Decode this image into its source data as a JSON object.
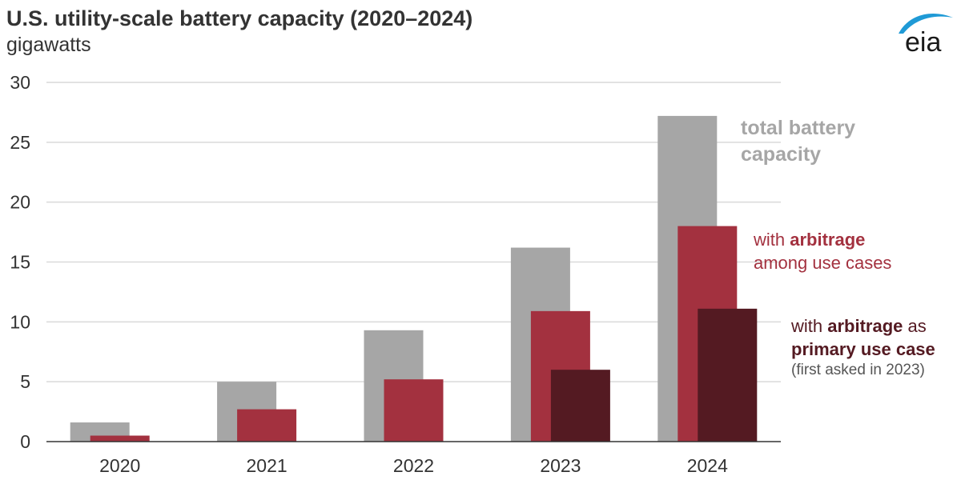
{
  "header": {
    "title": "U.S. utility-scale battery capacity (2020–2024)",
    "subtitle": "gigawatts",
    "logo_text": "eia"
  },
  "colors": {
    "total": "#a6a6a6",
    "arbitrage": "#a3313f",
    "primary": "#541a22",
    "grid": "#d9d9d9",
    "axis": "#333333",
    "logo_blue": "#1f9ad6",
    "logo_text": "#1a1a1a"
  },
  "annotations": {
    "total_line1": "total battery",
    "total_line2": "capacity",
    "arb_line1_prefix": "with ",
    "arb_line1_bold": "arbitrage",
    "arb_line2": "among use cases",
    "primary_line1_prefix": "with ",
    "primary_line1_bold": "arbitrage",
    "primary_line1_suffix": " as",
    "primary_line2_bold": "primary use case",
    "primary_line3": "(first asked in 2023)"
  },
  "chart_data": {
    "type": "bar",
    "title": "U.S. utility-scale battery capacity (2020–2024)",
    "ylabel": "gigawatts",
    "xlabel": "",
    "categories": [
      "2020",
      "2021",
      "2022",
      "2023",
      "2024"
    ],
    "ylim": [
      0,
      30
    ],
    "yticks": [
      0,
      5,
      10,
      15,
      20,
      25,
      30
    ],
    "grid": true,
    "series": [
      {
        "name": "total battery capacity",
        "values": [
          1.6,
          5.0,
          9.3,
          16.2,
          27.2
        ]
      },
      {
        "name": "with arbitrage among use cases",
        "values": [
          0.5,
          2.7,
          5.2,
          10.9,
          18.0
        ]
      },
      {
        "name": "with arbitrage as primary use case",
        "values": [
          null,
          null,
          null,
          6.0,
          11.1
        ]
      }
    ]
  }
}
